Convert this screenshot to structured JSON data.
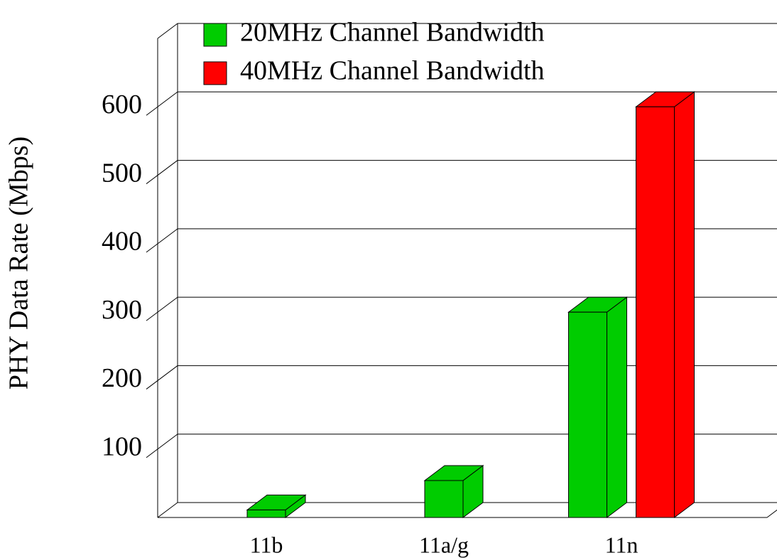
{
  "chart_data": {
    "type": "bar3d",
    "y_label": "PHY Data Rate (Mbps)",
    "categories": [
      "11b",
      "11a/g",
      "11n"
    ],
    "series": [
      {
        "name": "20MHz Channel Bandwidth",
        "color": "#00cc00",
        "values": [
          11,
          54,
          300
        ]
      },
      {
        "name": "40MHz Channel Bandwidth",
        "color": "#ff0000",
        "values": [
          null,
          null,
          600
        ]
      }
    ],
    "ylim": [
      0,
      700
    ],
    "yticks": [
      100,
      200,
      300,
      400,
      500,
      600
    ],
    "grid": true
  }
}
